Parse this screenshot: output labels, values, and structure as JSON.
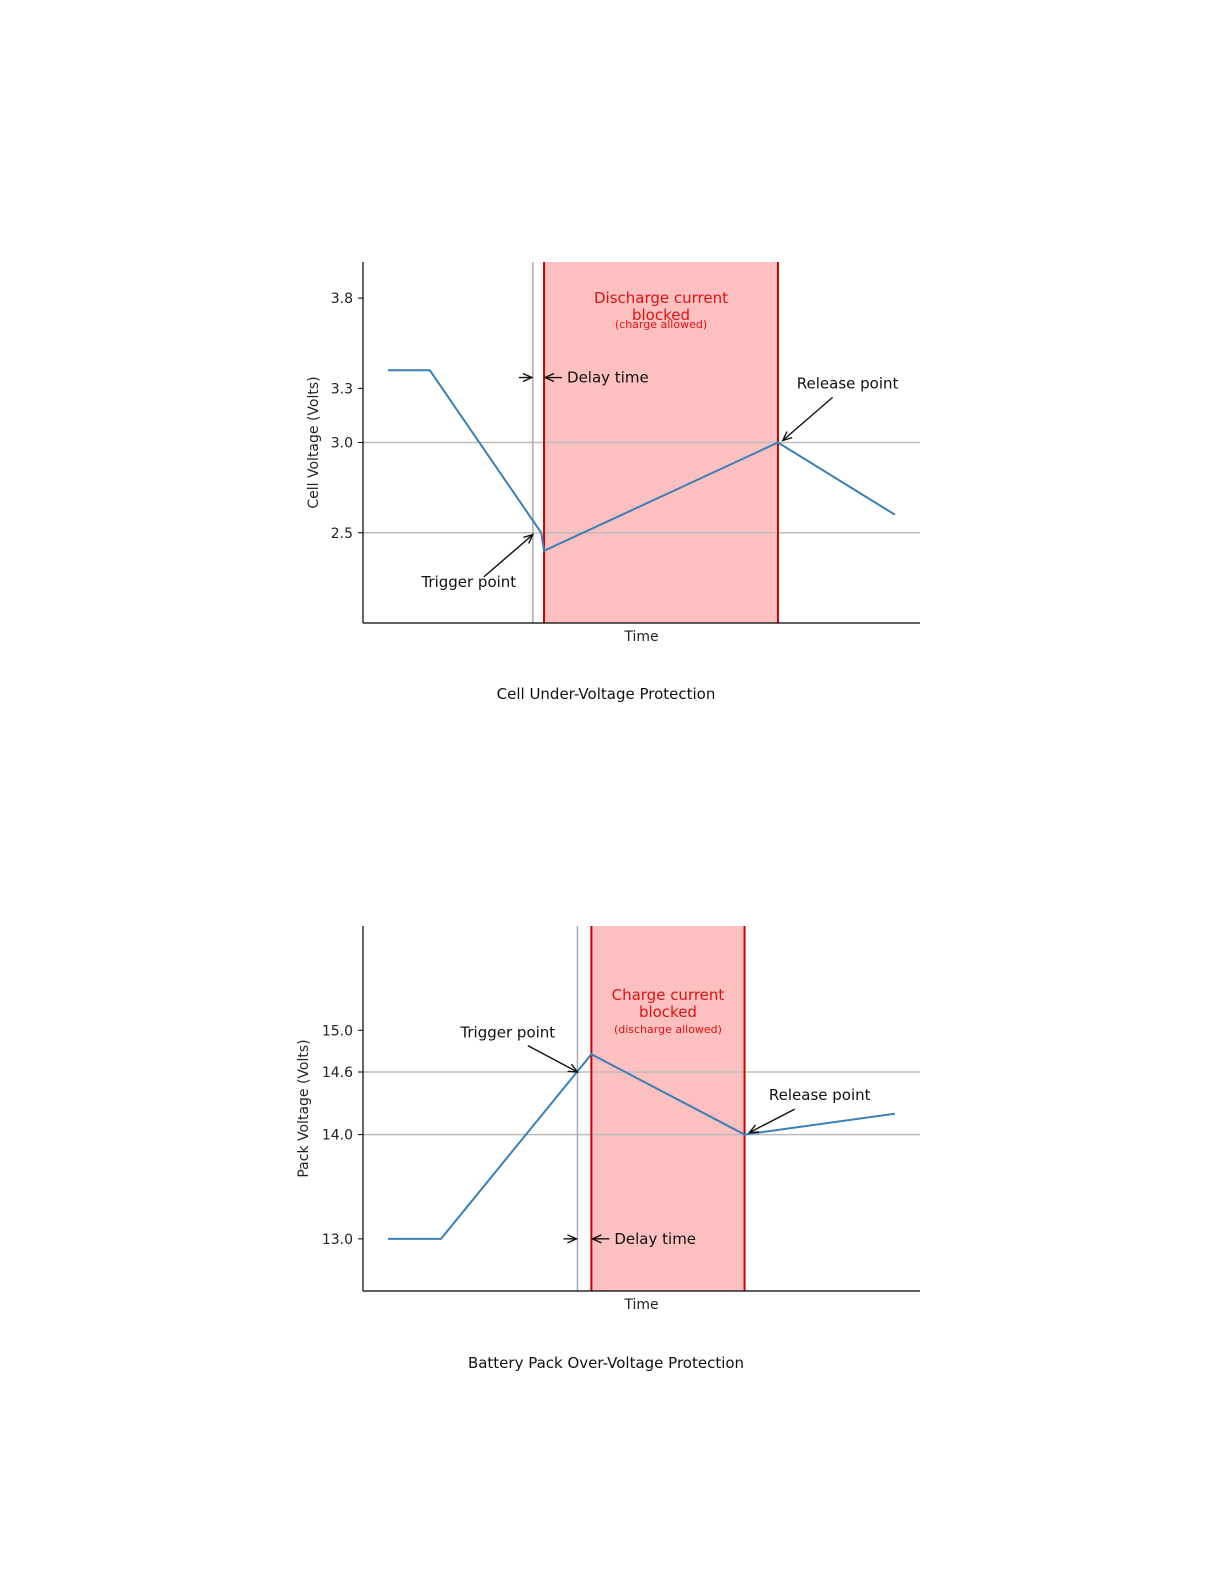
{
  "chart_data": [
    {
      "type": "line",
      "xlabel": "Time",
      "ylabel": "Cell Voltage (Volts)",
      "caption": "Cell Under-Voltage Protection",
      "yticks": [
        2.5,
        3.0,
        3.3,
        3.8
      ],
      "ylim": [
        2.0,
        4.0
      ],
      "xlim": [
        0,
        100
      ],
      "series": [
        {
          "values": [
            [
              4.5,
              3.4
            ],
            [
              12,
              3.4
            ],
            [
              32,
              2.5
            ],
            [
              32.5,
              2.4
            ],
            [
              74.5,
              3.0
            ],
            [
              95.5,
              2.6
            ]
          ]
        }
      ],
      "hlines": [
        2.5,
        3.0
      ],
      "delay_start_x": 30.5,
      "blocked_region": {
        "x_start": 32.5,
        "x_end": 74.5,
        "title": "Discharge current\nblocked",
        "subtitle": "(charge allowed)"
      },
      "annotations": {
        "trigger": {
          "text": "Trigger point",
          "point": [
            30.5,
            2.49
          ],
          "text_pos": [
            19,
            2.2
          ]
        },
        "release": {
          "text": "Release point",
          "point": [
            75,
            3.0
          ],
          "text_pos": [
            87,
            3.3
          ]
        },
        "delay": {
          "text": "Delay time",
          "y": 3.36
        }
      },
      "colors": {
        "line": "#3a7fb5",
        "region_fill": "#fcc0c0",
        "region_edge": "#cc0000",
        "hline": "#bbbbbb",
        "delay_line": "#aaaaaa"
      }
    },
    {
      "type": "line",
      "xlabel": "Time",
      "ylabel": "Pack Voltage (Volts)",
      "caption": "Battery Pack Over-Voltage Protection",
      "yticks": [
        13.0,
        14.0,
        14.6,
        15.0
      ],
      "ylim": [
        12.5,
        16.0
      ],
      "xlim": [
        0,
        100
      ],
      "series": [
        {
          "values": [
            [
              4.5,
              13.0
            ],
            [
              14,
              13.0
            ],
            [
              41,
              14.77
            ],
            [
              68.5,
              14.0
            ],
            [
              95.5,
              14.2
            ]
          ]
        }
      ],
      "hlines": [
        14.0,
        14.6
      ],
      "delay_start_x": 38.5,
      "blocked_region": {
        "x_start": 41,
        "x_end": 68.5,
        "title": "Charge current\nblocked",
        "subtitle": "(discharge allowed)"
      },
      "annotations": {
        "trigger": {
          "text": "Trigger point",
          "point": [
            38.5,
            14.6
          ],
          "text_pos": [
            26,
            14.93
          ]
        },
        "release": {
          "text": "Release point",
          "point": [
            69,
            14.0
          ],
          "text_pos": [
            82,
            14.33
          ]
        },
        "delay": {
          "text": "Delay time",
          "y": 13.0
        }
      },
      "colors": {
        "line": "#3a7fb5",
        "region_fill": "#fcc0c0",
        "region_edge": "#cc0000",
        "hline": "#bbbbbb",
        "delay_line": "#aaaaaa"
      }
    }
  ]
}
